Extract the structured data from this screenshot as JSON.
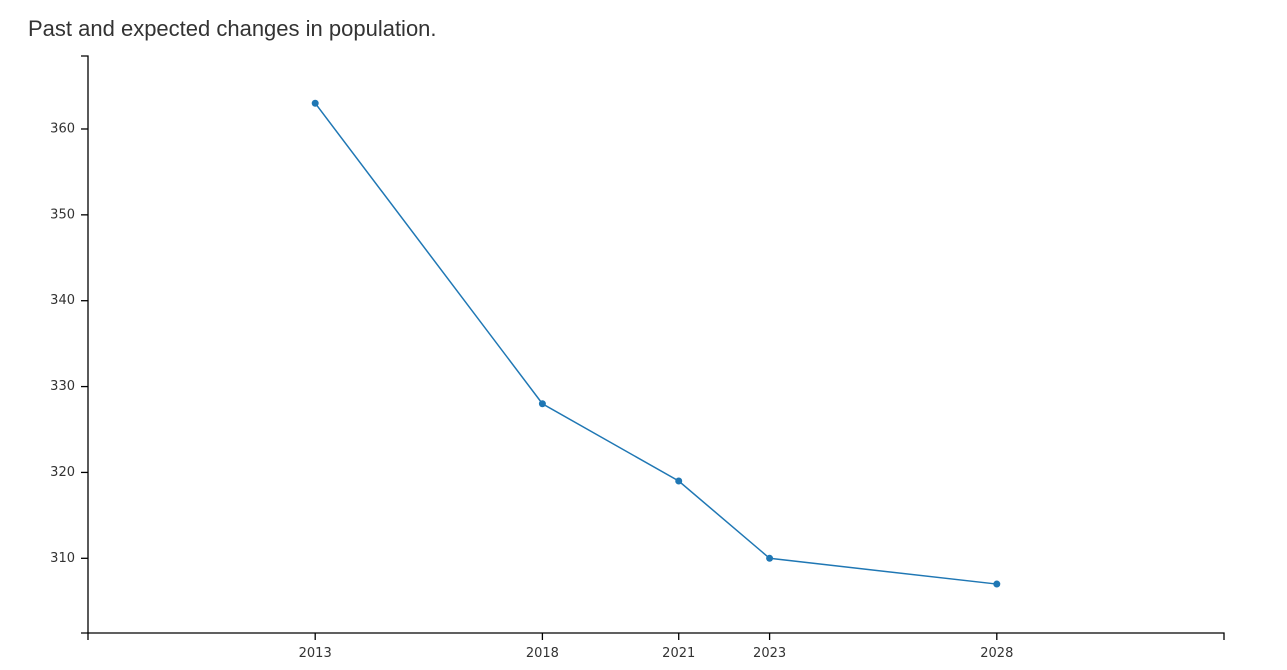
{
  "chart_data": {
    "type": "line",
    "title": "Past and expected changes in population.",
    "xlabel": "",
    "ylabel": "",
    "x": [
      2013,
      2018,
      2021,
      2023,
      2028
    ],
    "x_tick_labels": [
      "2013",
      "2018",
      "2021",
      "2023",
      "2028"
    ],
    "y_ticks": [
      310,
      320,
      330,
      340,
      350,
      360
    ],
    "y_tick_labels": [
      "310",
      "320",
      "330",
      "340",
      "350",
      "360"
    ],
    "xlim": [
      2008,
      2033
    ],
    "ylim": [
      301.3,
      368.5
    ],
    "grid": false,
    "legend": "none",
    "series": [
      {
        "values": [
          363,
          328,
          319,
          310,
          307
        ],
        "color": "#1f77b4"
      }
    ]
  }
}
